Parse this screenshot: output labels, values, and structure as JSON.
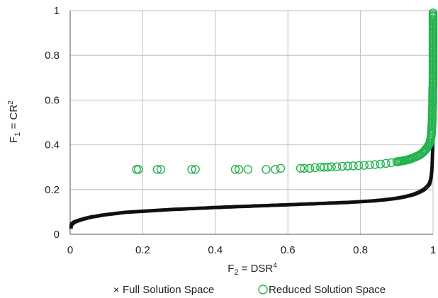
{
  "chart_data": {
    "type": "scatter",
    "xlabel": {
      "base": "F",
      "sub": "2",
      "rest": " = DSR",
      "sup": "4"
    },
    "ylabel": {
      "base": "F",
      "sub": "1",
      "rest": " = CR",
      "sup": "2"
    },
    "xlim": [
      0,
      1
    ],
    "ylim": [
      0,
      1
    ],
    "x_ticks": [
      "0",
      "0.2",
      "0.4",
      "0.6",
      "0.8",
      "1"
    ],
    "y_ticks": [
      "0",
      "0.2",
      "0.4",
      "0.6",
      "0.8",
      "1"
    ],
    "grid": true,
    "legend_position": "bottom",
    "colors": {
      "full": "#111111",
      "reduced": "#22b24c",
      "grid": "#bfbfbf"
    },
    "series": [
      {
        "name": "Full Solution Space",
        "marker": "x",
        "points": [
          [
            0.002,
            0.03
          ],
          [
            0.004,
            0.045
          ],
          [
            0.008,
            0.05
          ],
          [
            0.012,
            0.055
          ],
          [
            0.02,
            0.06
          ],
          [
            0.03,
            0.065
          ],
          [
            0.04,
            0.07
          ],
          [
            0.05,
            0.074
          ],
          [
            0.06,
            0.078
          ],
          [
            0.07,
            0.08
          ],
          [
            0.08,
            0.083
          ],
          [
            0.09,
            0.086
          ],
          [
            0.1,
            0.088
          ],
          [
            0.11,
            0.09
          ],
          [
            0.12,
            0.092
          ],
          [
            0.13,
            0.094
          ],
          [
            0.14,
            0.096
          ],
          [
            0.15,
            0.098
          ],
          [
            0.16,
            0.099
          ],
          [
            0.17,
            0.1
          ],
          [
            0.18,
            0.101
          ],
          [
            0.19,
            0.102
          ],
          [
            0.2,
            0.103
          ],
          [
            0.21,
            0.104
          ],
          [
            0.22,
            0.105
          ],
          [
            0.23,
            0.106
          ],
          [
            0.24,
            0.107
          ],
          [
            0.25,
            0.108
          ],
          [
            0.26,
            0.109
          ],
          [
            0.27,
            0.11
          ],
          [
            0.28,
            0.111
          ],
          [
            0.29,
            0.112
          ],
          [
            0.3,
            0.112
          ],
          [
            0.31,
            0.113
          ],
          [
            0.32,
            0.114
          ],
          [
            0.33,
            0.115
          ],
          [
            0.34,
            0.115
          ],
          [
            0.35,
            0.116
          ],
          [
            0.36,
            0.117
          ],
          [
            0.37,
            0.117
          ],
          [
            0.38,
            0.118
          ],
          [
            0.39,
            0.119
          ],
          [
            0.4,
            0.12
          ],
          [
            0.41,
            0.12
          ],
          [
            0.42,
            0.121
          ],
          [
            0.43,
            0.122
          ],
          [
            0.44,
            0.122
          ],
          [
            0.45,
            0.123
          ],
          [
            0.46,
            0.124
          ],
          [
            0.47,
            0.124
          ],
          [
            0.48,
            0.125
          ],
          [
            0.49,
            0.125
          ],
          [
            0.5,
            0.126
          ],
          [
            0.51,
            0.127
          ],
          [
            0.52,
            0.127
          ],
          [
            0.53,
            0.128
          ],
          [
            0.54,
            0.128
          ],
          [
            0.55,
            0.129
          ],
          [
            0.56,
            0.13
          ],
          [
            0.57,
            0.13
          ],
          [
            0.58,
            0.131
          ],
          [
            0.59,
            0.131
          ],
          [
            0.6,
            0.132
          ],
          [
            0.61,
            0.133
          ],
          [
            0.62,
            0.133
          ],
          [
            0.63,
            0.134
          ],
          [
            0.64,
            0.135
          ],
          [
            0.65,
            0.135
          ],
          [
            0.66,
            0.136
          ],
          [
            0.67,
            0.136
          ],
          [
            0.68,
            0.137
          ],
          [
            0.69,
            0.138
          ],
          [
            0.7,
            0.138
          ],
          [
            0.71,
            0.139
          ],
          [
            0.72,
            0.14
          ],
          [
            0.73,
            0.14
          ],
          [
            0.74,
            0.141
          ],
          [
            0.75,
            0.142
          ],
          [
            0.76,
            0.142
          ],
          [
            0.77,
            0.143
          ],
          [
            0.78,
            0.144
          ],
          [
            0.79,
            0.145
          ],
          [
            0.8,
            0.146
          ],
          [
            0.81,
            0.147
          ],
          [
            0.82,
            0.148
          ],
          [
            0.83,
            0.149
          ],
          [
            0.84,
            0.15
          ],
          [
            0.85,
            0.152
          ],
          [
            0.86,
            0.153
          ],
          [
            0.87,
            0.155
          ],
          [
            0.88,
            0.157
          ],
          [
            0.89,
            0.159
          ],
          [
            0.9,
            0.161
          ],
          [
            0.91,
            0.164
          ],
          [
            0.92,
            0.167
          ],
          [
            0.93,
            0.171
          ],
          [
            0.94,
            0.175
          ],
          [
            0.95,
            0.18
          ],
          [
            0.96,
            0.187
          ],
          [
            0.97,
            0.195
          ],
          [
            0.975,
            0.2
          ],
          [
            0.98,
            0.207
          ],
          [
            0.985,
            0.215
          ],
          [
            0.99,
            0.225
          ],
          [
            0.993,
            0.24
          ],
          [
            0.995,
            0.26
          ],
          [
            0.997,
            0.29
          ],
          [
            0.998,
            0.33
          ],
          [
            0.999,
            0.38
          ],
          [
            0.9995,
            0.42
          ]
        ]
      },
      {
        "name": "Reduced Solution Space",
        "marker": "o",
        "points": [
          [
            0.183,
            0.29
          ],
          [
            0.188,
            0.29
          ],
          [
            0.24,
            0.29
          ],
          [
            0.25,
            0.29
          ],
          [
            0.335,
            0.29
          ],
          [
            0.345,
            0.29
          ],
          [
            0.455,
            0.29
          ],
          [
            0.465,
            0.29
          ],
          [
            0.49,
            0.29
          ],
          [
            0.54,
            0.29
          ],
          [
            0.565,
            0.29
          ],
          [
            0.58,
            0.295
          ],
          [
            0.635,
            0.295
          ],
          [
            0.645,
            0.295
          ],
          [
            0.66,
            0.295
          ],
          [
            0.675,
            0.298
          ],
          [
            0.69,
            0.3
          ],
          [
            0.7,
            0.3
          ],
          [
            0.71,
            0.3
          ],
          [
            0.72,
            0.302
          ],
          [
            0.735,
            0.302
          ],
          [
            0.75,
            0.304
          ],
          [
            0.765,
            0.305
          ],
          [
            0.78,
            0.306
          ],
          [
            0.795,
            0.307
          ],
          [
            0.81,
            0.308
          ],
          [
            0.825,
            0.31
          ],
          [
            0.84,
            0.312
          ],
          [
            0.855,
            0.314
          ],
          [
            0.87,
            0.317
          ],
          [
            0.885,
            0.32
          ],
          [
            0.9,
            0.324
          ],
          [
            0.915,
            0.328
          ],
          [
            0.93,
            0.333
          ],
          [
            0.94,
            0.338
          ],
          [
            0.95,
            0.345
          ],
          [
            0.96,
            0.352
          ],
          [
            0.968,
            0.36
          ],
          [
            0.975,
            0.37
          ],
          [
            0.98,
            0.38
          ],
          [
            0.985,
            0.39
          ],
          [
            0.99,
            0.405
          ],
          [
            0.993,
            0.42
          ],
          [
            0.995,
            0.44
          ],
          [
            0.996,
            0.46
          ],
          [
            0.997,
            0.49
          ],
          [
            0.998,
            0.52
          ],
          [
            0.998,
            0.55
          ],
          [
            0.999,
            0.58
          ],
          [
            0.999,
            0.61
          ],
          [
            0.999,
            0.64
          ],
          [
            1.0,
            0.67
          ],
          [
            1.0,
            0.7
          ],
          [
            1.0,
            0.73
          ],
          [
            1.0,
            0.76
          ],
          [
            1.0,
            0.79
          ],
          [
            1.0,
            0.82
          ],
          [
            1.0,
            0.85
          ],
          [
            1.0,
            0.88
          ],
          [
            1.0,
            0.91
          ],
          [
            1.0,
            0.94
          ],
          [
            1.0,
            0.97
          ],
          [
            1.0,
            0.99
          ]
        ]
      }
    ]
  }
}
